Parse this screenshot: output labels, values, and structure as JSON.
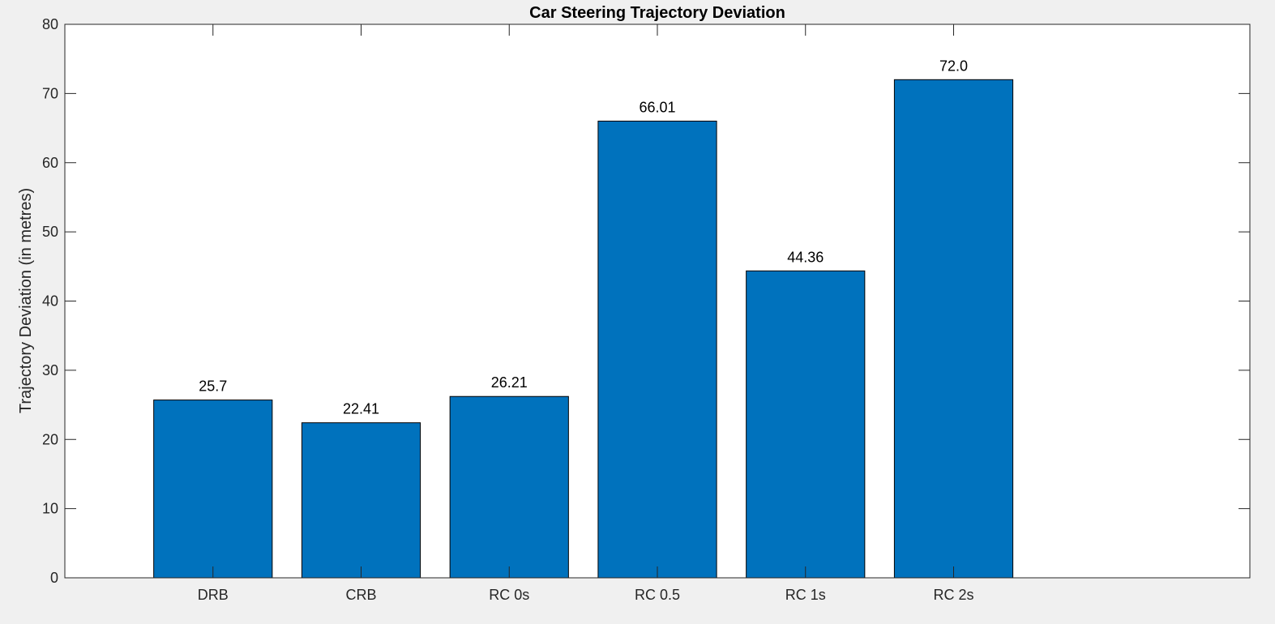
{
  "chart_data": {
    "type": "bar",
    "title": "Car Steering Trajectory Deviation",
    "xlabel": "",
    "ylabel": "Trajectory Deviation (in metres)",
    "categories": [
      "DRB",
      "CRB",
      "RC 0s",
      "RC 0.5",
      "RC 1s",
      "RC 2s"
    ],
    "values": [
      25.7,
      22.41,
      26.21,
      66.01,
      44.36,
      72.0
    ],
    "data_labels": [
      "25.7",
      "22.41",
      "26.21",
      "66.01",
      "44.36",
      "72.0"
    ],
    "ylim": [
      0,
      80
    ],
    "xlim": [
      0,
      8
    ],
    "yticks": [
      0,
      10,
      20,
      30,
      40,
      50,
      60,
      70,
      80
    ],
    "grid": false,
    "legend": "none",
    "colors": {
      "bar": "#0072bd",
      "bar_edge": "#000000",
      "axes": "#262626",
      "plot_bg": "#ffffff",
      "figure_bg": "#f0f0f0"
    }
  }
}
